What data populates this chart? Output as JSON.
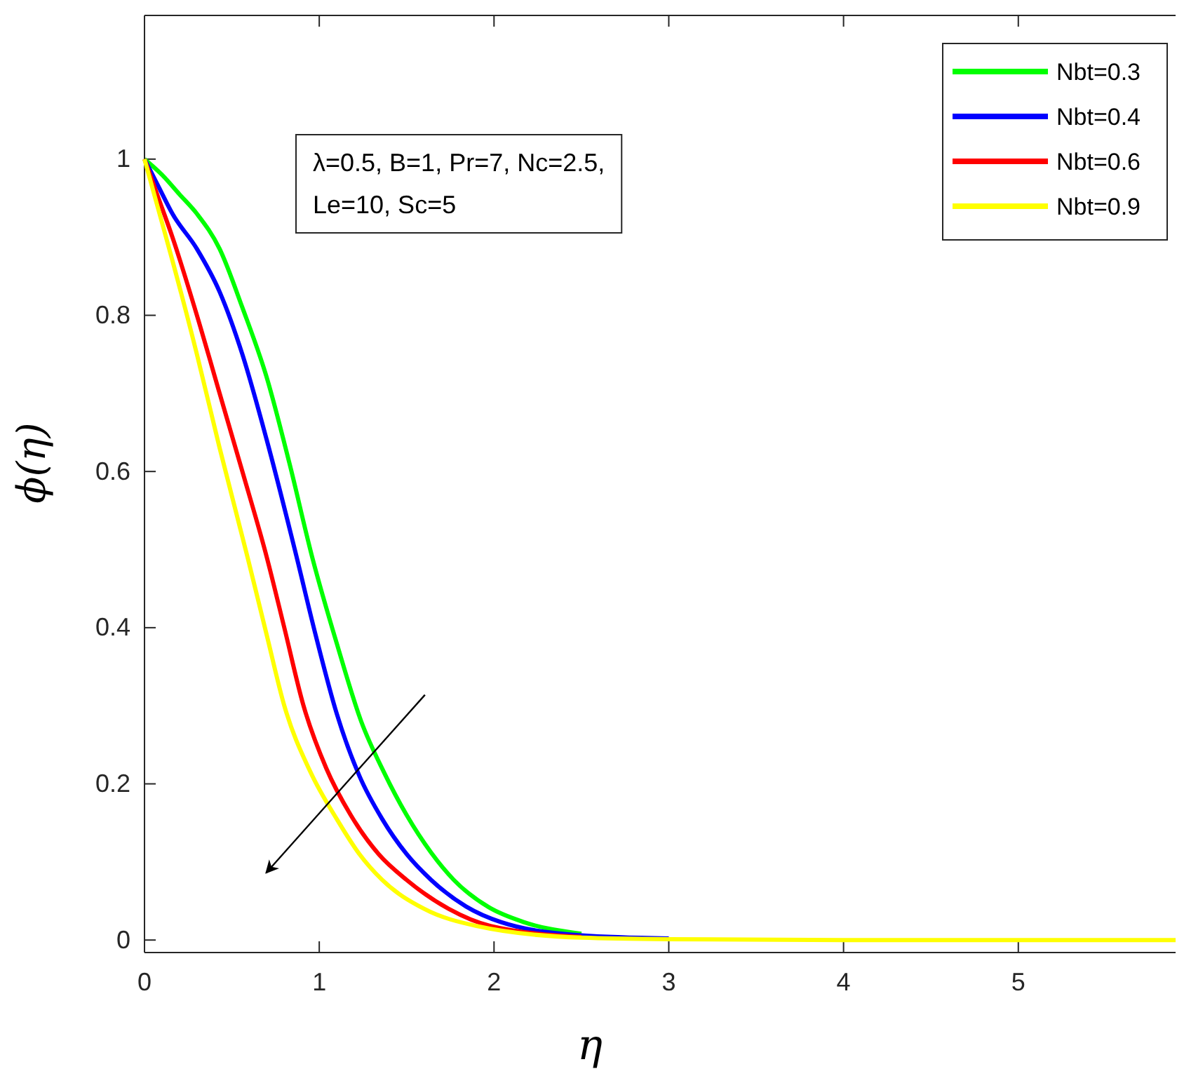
{
  "chart_data": {
    "type": "line",
    "xlabel": "η",
    "ylabel": "ϕ(η)",
    "xlim": [
      0,
      5.9
    ],
    "ylim": [
      -0.016,
      1.184
    ],
    "xticks": [
      0,
      1,
      2,
      3,
      4,
      5
    ],
    "yticks": [
      0,
      0.2,
      0.4,
      0.6,
      0.8,
      1
    ],
    "grid": false,
    "legend": "top right",
    "line_style": "solid",
    "marker": "none",
    "annotations": [
      "λ=0.5, B=1, Pr=7, Nc=2.5,",
      "Le=10, Sc=5"
    ],
    "series": [
      {
        "name": "Nbt=0.3",
        "color": "#00ff00",
        "x": [
          0,
          0.1,
          0.2,
          0.3,
          0.43,
          0.56,
          0.7,
          0.83,
          0.96,
          1.1,
          1.24,
          1.37,
          1.5,
          1.64,
          1.77,
          1.97,
          2.17,
          2.5
        ],
        "values": [
          1,
          0.98,
          0.955,
          0.93,
          0.885,
          0.81,
          0.72,
          0.61,
          0.49,
          0.38,
          0.28,
          0.215,
          0.16,
          0.112,
          0.077,
          0.042,
          0.023,
          0.008
        ]
      },
      {
        "name": "Nbt=0.4",
        "color": "#0000ff",
        "x": [
          0,
          0.08,
          0.16,
          0.3,
          0.43,
          0.56,
          0.7,
          0.86,
          0.98,
          1.1,
          1.23,
          1.36,
          1.5,
          1.64,
          1.84,
          2.04,
          2.5,
          3
        ],
        "values": [
          1,
          0.965,
          0.93,
          0.885,
          0.83,
          0.75,
          0.64,
          0.5,
          0.39,
          0.29,
          0.21,
          0.155,
          0.11,
          0.077,
          0.043,
          0.023,
          0.006,
          0.002
        ]
      },
      {
        "name": "Nbt=0.6",
        "color": "#ff0000",
        "x": [
          0,
          0.08,
          0.16,
          0.3,
          0.43,
          0.56,
          0.7,
          0.8,
          0.91,
          1.04,
          1.18,
          1.34,
          1.5,
          1.74,
          1.98,
          2.5
        ],
        "values": [
          1,
          0.95,
          0.9,
          0.8,
          0.7,
          0.6,
          0.49,
          0.4,
          0.3,
          0.22,
          0.16,
          0.11,
          0.077,
          0.04,
          0.018,
          0.004
        ]
      },
      {
        "name": "Nbt=0.9",
        "color": "#ffff00",
        "x": [
          0,
          0.08,
          0.16,
          0.3,
          0.43,
          0.59,
          0.7,
          0.8,
          0.95,
          1.1,
          1.23,
          1.36,
          1.6,
          1.9,
          2.5,
          3,
          4,
          5,
          5.9
        ],
        "values": [
          1,
          0.935,
          0.87,
          0.75,
          0.63,
          0.49,
          0.39,
          0.3,
          0.215,
          0.155,
          0.11,
          0.077,
          0.04,
          0.018,
          0.003,
          0.001,
          0,
          0,
          0
        ]
      }
    ]
  }
}
